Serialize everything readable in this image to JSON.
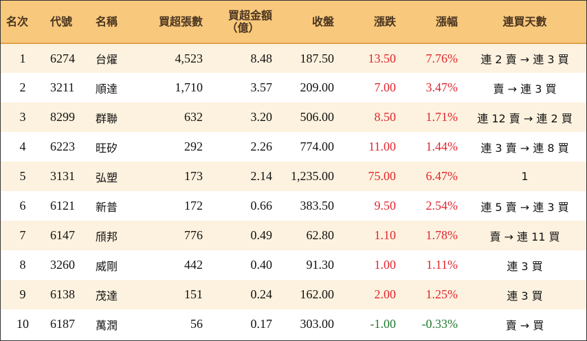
{
  "headers": {
    "rank": "名次",
    "code": "代號",
    "name": "名稱",
    "net_buy_lots": "買超張數",
    "net_buy_amount_line1": "買超金額",
    "net_buy_amount_line2": "（億）",
    "close": "收盤",
    "change": "漲跌",
    "change_pct": "漲幅",
    "consecutive_days": "連買天數"
  },
  "colors": {
    "header_bg": "#f8c87c",
    "stripe_bg": "#fdf2df",
    "up": "#e0262e",
    "down": "#1f7a2e"
  },
  "rows": [
    {
      "rank": "1",
      "code": "6274",
      "name": "台燿",
      "lots": "4,523",
      "amount": "8.48",
      "close": "187.50",
      "change": "13.50",
      "pct": "7.76%",
      "days": "連 2 賣 → 連 3 買",
      "direction": "up"
    },
    {
      "rank": "2",
      "code": "3211",
      "name": "順達",
      "lots": "1,710",
      "amount": "3.57",
      "close": "209.00",
      "change": "7.00",
      "pct": "3.47%",
      "days": "賣 → 連 3 買",
      "direction": "up"
    },
    {
      "rank": "3",
      "code": "8299",
      "name": "群聯",
      "lots": "632",
      "amount": "3.20",
      "close": "506.00",
      "change": "8.50",
      "pct": "1.71%",
      "days": "連 12 賣 → 連 2 買",
      "direction": "up"
    },
    {
      "rank": "4",
      "code": "6223",
      "name": "旺矽",
      "lots": "292",
      "amount": "2.26",
      "close": "774.00",
      "change": "11.00",
      "pct": "1.44%",
      "days": "連 3 賣 → 連 8 買",
      "direction": "up"
    },
    {
      "rank": "5",
      "code": "3131",
      "name": "弘塑",
      "lots": "173",
      "amount": "2.14",
      "close": "1,235.00",
      "change": "75.00",
      "pct": "6.47%",
      "days": "1",
      "direction": "up"
    },
    {
      "rank": "6",
      "code": "6121",
      "name": "新普",
      "lots": "172",
      "amount": "0.66",
      "close": "383.50",
      "change": "9.50",
      "pct": "2.54%",
      "days": "連 5 賣 → 連 3 買",
      "direction": "up"
    },
    {
      "rank": "7",
      "code": "6147",
      "name": "頎邦",
      "lots": "776",
      "amount": "0.49",
      "close": "62.80",
      "change": "1.10",
      "pct": "1.78%",
      "days": "賣 → 連 11 買",
      "direction": "up"
    },
    {
      "rank": "8",
      "code": "3260",
      "name": "威剛",
      "lots": "442",
      "amount": "0.40",
      "close": "91.30",
      "change": "1.00",
      "pct": "1.11%",
      "days": "連 3 買",
      "direction": "up"
    },
    {
      "rank": "9",
      "code": "6138",
      "name": "茂達",
      "lots": "151",
      "amount": "0.24",
      "close": "162.00",
      "change": "2.00",
      "pct": "1.25%",
      "days": "連 3 買",
      "direction": "up"
    },
    {
      "rank": "10",
      "code": "6187",
      "name": "萬潤",
      "lots": "56",
      "amount": "0.17",
      "close": "303.00",
      "change": "-1.00",
      "pct": "-0.33%",
      "days": "賣 → 買",
      "direction": "down"
    }
  ]
}
